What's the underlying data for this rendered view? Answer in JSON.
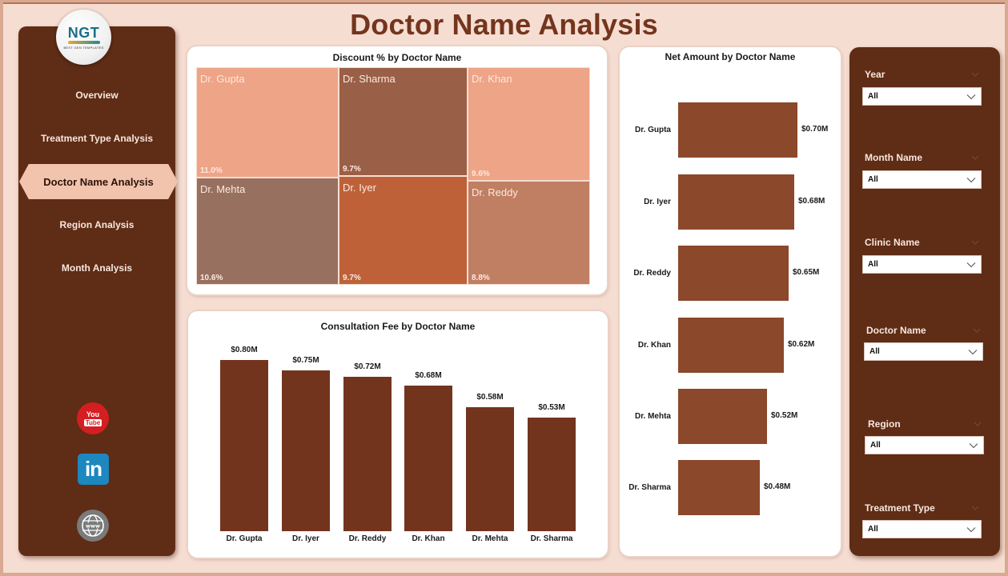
{
  "header": {
    "title": "Doctor Name Analysis"
  },
  "logo": {
    "mark": "NGT",
    "subtitle": "BEST GEN TEMPLATES"
  },
  "nav": {
    "items": [
      {
        "label": "Overview",
        "active": false
      },
      {
        "label": "Treatment Type Analysis",
        "active": false
      },
      {
        "label": "Doctor Name Analysis",
        "active": true
      },
      {
        "label": "Region Analysis",
        "active": false
      },
      {
        "label": "Month Analysis",
        "active": false
      }
    ],
    "social": [
      {
        "icon": "youtube-icon",
        "text_top": "You",
        "text_bottom": "Tube"
      },
      {
        "icon": "linkedin-icon",
        "text": "in"
      },
      {
        "icon": "website-globe-icon",
        "text": "www"
      }
    ]
  },
  "slicers": [
    {
      "label": "Year",
      "value": "All"
    },
    {
      "label": "Month Name",
      "value": "All"
    },
    {
      "label": "Clinic Name",
      "value": "All"
    },
    {
      "label": "Doctor Name",
      "value": "All"
    },
    {
      "label": "Region",
      "value": "All"
    },
    {
      "label": "Treatment Type",
      "value": "All"
    }
  ],
  "colors": {
    "primary_dark": "#5f2c15",
    "title": "#74351d",
    "bar_vertical": "#73341e",
    "bar_horizontal": "#8b482a",
    "background": "#f6ddd2"
  },
  "chart_data": [
    {
      "type": "treemap",
      "title": "Discount % by Doctor Name",
      "categories": [
        "Dr. Gupta",
        "Dr. Mehta",
        "Dr. Sharma",
        "Dr. Iyer",
        "Dr. Khan",
        "Dr. Reddy"
      ],
      "values": [
        11.0,
        10.6,
        9.7,
        9.7,
        9.6,
        8.8
      ],
      "labels": [
        "11.0%",
        "10.6%",
        "9.7%",
        "9.7%",
        "9.6%",
        "8.8%"
      ],
      "colors": [
        "#eea486",
        "#97705f",
        "#9a5f47",
        "#be6139",
        "#eea486",
        "#c07e62"
      ],
      "unit": "%"
    },
    {
      "type": "bar",
      "title": "Consultation Fee by Doctor Name",
      "categories": [
        "Dr. Gupta",
        "Dr. Iyer",
        "Dr. Reddy",
        "Dr. Khan",
        "Dr. Mehta",
        "Dr. Sharma"
      ],
      "values": [
        0.8,
        0.75,
        0.72,
        0.68,
        0.58,
        0.53
      ],
      "labels": [
        "$0.80M",
        "$0.75M",
        "$0.72M",
        "$0.68M",
        "$0.58M",
        "$0.53M"
      ],
      "xlabel": "",
      "ylabel": "",
      "unit": "$M",
      "grid": false
    },
    {
      "type": "bar",
      "orientation": "horizontal",
      "title": "Net Amount by Doctor Name",
      "categories": [
        "Dr. Gupta",
        "Dr. Iyer",
        "Dr. Reddy",
        "Dr. Khan",
        "Dr. Mehta",
        "Dr. Sharma"
      ],
      "values": [
        0.7,
        0.68,
        0.65,
        0.62,
        0.52,
        0.48
      ],
      "labels": [
        "$0.70M",
        "$0.68M",
        "$0.65M",
        "$0.62M",
        "$0.52M",
        "$0.48M"
      ],
      "xlabel": "",
      "ylabel": "",
      "unit": "$M",
      "grid": false
    }
  ]
}
